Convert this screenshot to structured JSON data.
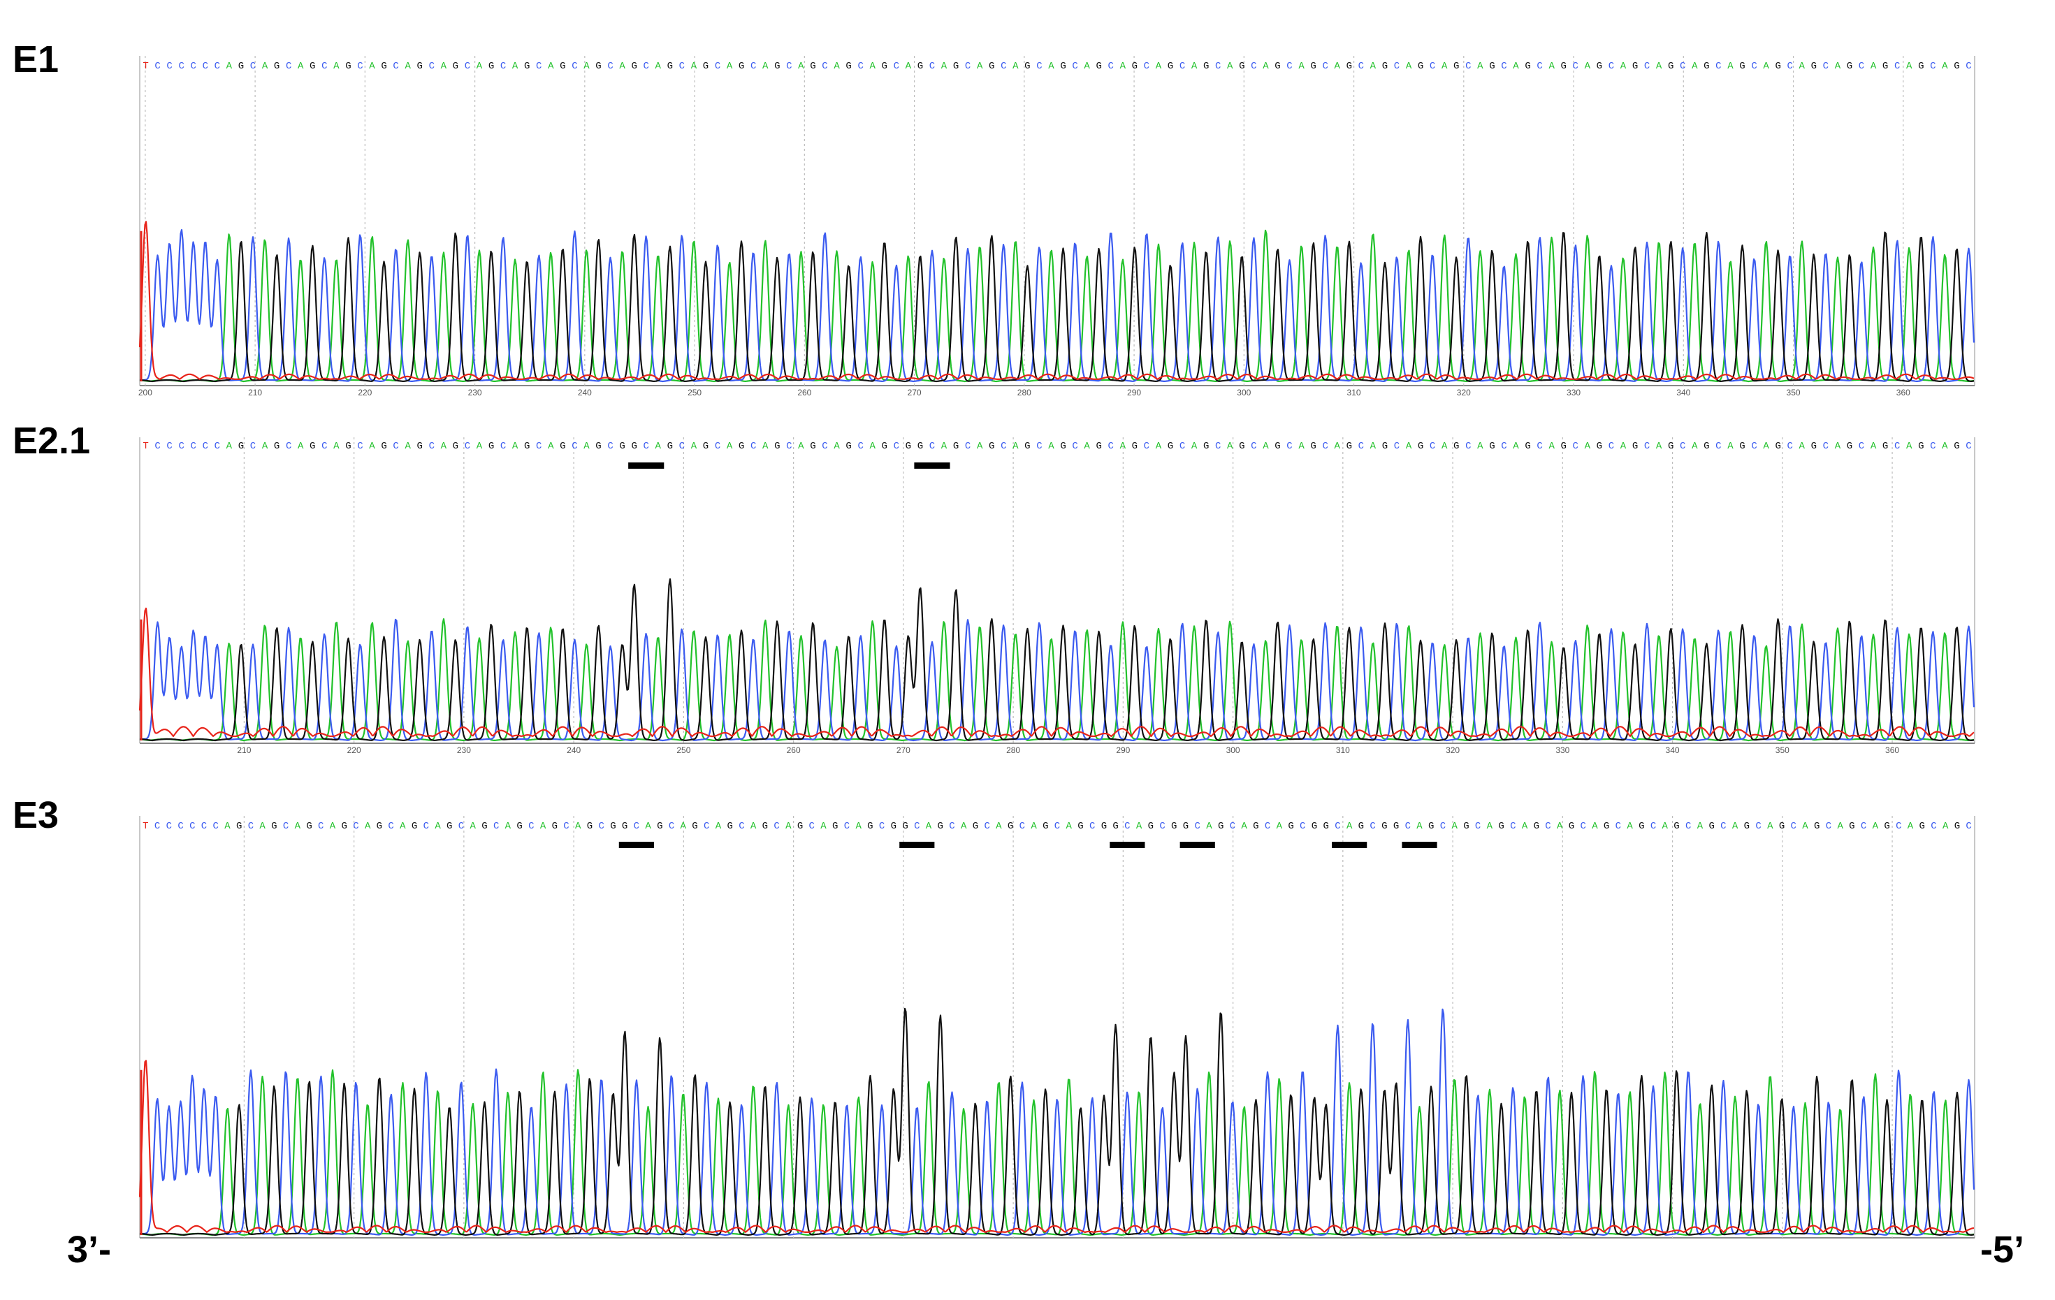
{
  "figure": {
    "end_left": "3’-",
    "end_right": "-5’"
  },
  "colors": {
    "A": "#22c22b",
    "C": "#3b5bf0",
    "G": "#111111",
    "T": "#e8241a",
    "mutation_bar": "#000000",
    "frame": "#c8c8c8",
    "grid": "#bdbdbd"
  },
  "chart_data": [
    {
      "type": "line",
      "name": "E1",
      "title": "E1",
      "sequence": "TCCCCCCAGCAGCAGCAGCAGCAGCAGCAGCAGCAGCAGCAGCAGCAGCAGCAGCAGCAGCAGCAGCAGCAGCAGCAGCAGCAGCAGCAGCAGCAGCAGCAGCAGCAGCAGCAGCAGCAGCAGCAGCAGCAGCAGCAGCAGCAGCAGCAGCAGC",
      "x_ticks": [
        200,
        210,
        220,
        230,
        240,
        250,
        260,
        270,
        280,
        290,
        300,
        310,
        320,
        330,
        340,
        350,
        360
      ],
      "xlim": [
        199.5,
        366.5
      ],
      "mutation_positions": [],
      "tall_peak_positions": []
    },
    {
      "type": "line",
      "name": "E2.1",
      "title": "E2.1",
      "sequence": "TCCCCCCAGCAGCAGCAGCAGCAGCAGCAGCAGCAGCAGCGGCAGCAGCAGCAGCAGCAGCAGCGGCAGCAGCAGCAGCAGCAGCAGCAGCAGCAGCAGCAGCAGCAGCAGCAGCAGCAGCAGCAGCAGCAGCAGCAGCAGCAGCAGCAGCAGC",
      "x_ticks": [
        210,
        220,
        230,
        240,
        250,
        260,
        270,
        280,
        290,
        300,
        310,
        320,
        330,
        340,
        350,
        360
      ],
      "xlim": [
        200.5,
        367.5
      ],
      "mutation_positions": [
        41,
        65
      ],
      "tall_peak_positions": [
        41,
        44,
        65,
        68
      ]
    },
    {
      "type": "line",
      "name": "E3",
      "title": "E3",
      "sequence": "TCCCCCCAGCAGCAGCAGCAGCAGCAGCAGCAGCAGCAGCGGCAGCAGCAGCAGCAGCAGCAGCGGCAGCAGCAGCAGCAGCGGCAGCGGCAGCAGCAGCGGCAGCGGCAGCAGCAGCAGCAGCAGCAGCAGCAGCAGCAGCAGCAGCAGCAGCAGC",
      "x_ticks": [],
      "xlim": [
        200.5,
        367.5
      ],
      "mutation_positions": [
        41,
        65,
        83,
        89,
        102,
        108
      ],
      "tall_peak_positions": [
        41,
        44,
        65,
        68,
        83,
        86,
        89,
        92,
        102,
        105,
        108,
        111
      ]
    }
  ]
}
